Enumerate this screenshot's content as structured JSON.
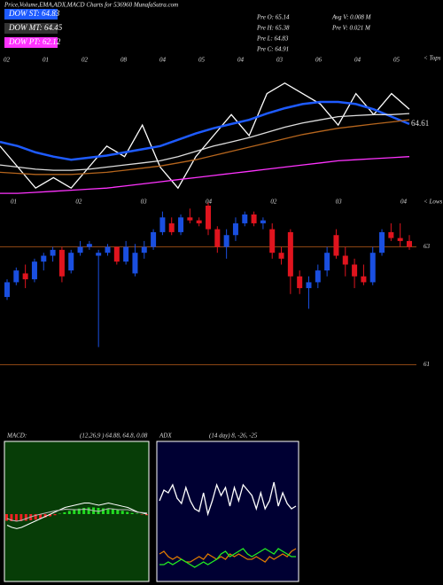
{
  "header": {
    "title": "Price,Volume,EMA,ADX,MACD Charts for 536960  MunafaSutra.com",
    "stats": [
      "Pre  O: 65.14",
      "Pre  H: 65.38",
      "Pre  L: 64.83",
      "Pre  C: 64.91",
      "Avg  V: 0.008 M",
      "Pre  V: 0.021 M"
    ]
  },
  "chart_data": [
    {
      "type": "line",
      "right_label": "< Tops",
      "date_labels": [
        "02",
        "01",
        "02",
        "08",
        "04",
        "05",
        "04",
        "03",
        "06",
        "04",
        "05"
      ],
      "ylim": [
        63.85,
        65.2
      ],
      "series": [
        {
          "color": "#ffffff",
          "values": [
            64.4,
            64.2,
            64.0,
            64.1,
            64.0,
            64.2,
            64.4,
            64.3,
            64.6,
            64.2,
            64.0,
            64.3,
            64.5,
            64.7,
            64.5,
            64.9,
            65.0,
            64.9,
            64.8,
            64.6,
            64.9,
            64.7,
            64.9,
            64.75
          ]
        },
        {
          "name": "DOW ST: 64.83",
          "color": "#1e5bff",
          "values": [
            64.44,
            64.4,
            64.34,
            64.3,
            64.27,
            64.29,
            64.31,
            64.34,
            64.37,
            64.4,
            64.46,
            64.52,
            64.57,
            64.61,
            64.65,
            64.71,
            64.76,
            64.8,
            64.82,
            64.82,
            64.8,
            64.75,
            64.68,
            64.61
          ]
        },
        {
          "name": "DOW MT: 64.45",
          "color": "#dddddd",
          "values": [
            64.22,
            64.2,
            64.18,
            64.17,
            64.17,
            64.18,
            64.2,
            64.22,
            64.24,
            64.26,
            64.3,
            64.35,
            64.4,
            64.44,
            64.48,
            64.53,
            64.58,
            64.62,
            64.65,
            64.68,
            64.69,
            64.7,
            64.7,
            64.71
          ]
        },
        {
          "color": "#b5651d",
          "values": [
            64.15,
            64.14,
            64.13,
            64.13,
            64.13,
            64.14,
            64.15,
            64.17,
            64.19,
            64.21,
            64.24,
            64.27,
            64.31,
            64.35,
            64.39,
            64.43,
            64.47,
            64.51,
            64.54,
            64.57,
            64.59,
            64.61,
            64.63,
            64.65
          ]
        },
        {
          "name": "DOW PT: 62.12",
          "color": "#ff33ff",
          "values": [
            63.95,
            63.95,
            63.96,
            63.97,
            63.98,
            63.99,
            64.0,
            64.02,
            64.04,
            64.06,
            64.08,
            64.1,
            64.12,
            64.14,
            64.16,
            64.18,
            64.2,
            64.22,
            64.24,
            64.26,
            64.27,
            64.28,
            64.29,
            64.3
          ]
        }
      ]
    },
    {
      "type": "candlestick",
      "right_label": "< Lows",
      "date_labels": [
        "01",
        "02",
        "03",
        "04",
        "02",
        "03",
        "04"
      ],
      "ylim": [
        60,
        63.7
      ],
      "yticks": [
        63,
        61
      ],
      "up_color": "#1a4fe0",
      "down_color": "#e0141e",
      "open": [
        62.15,
        62.4,
        62.55,
        62.45,
        62.75,
        62.85,
        62.95,
        62.6,
        62.9,
        63.0,
        62.85,
        62.9,
        63.0,
        62.75,
        62.55,
        62.9,
        63.0,
        63.25,
        63.4,
        63.25,
        63.5,
        63.45,
        63.7,
        63.3,
        63.0,
        63.2,
        63.4,
        63.55,
        63.4,
        63.3,
        62.9,
        63.25,
        62.5,
        62.3,
        62.4,
        62.6,
        63.2,
        62.85,
        62.7,
        62.5,
        62.4,
        62.9,
        63.25,
        63.15,
        63.1
      ],
      "high": [
        62.45,
        62.65,
        62.7,
        62.8,
        62.9,
        63.0,
        63.0,
        62.95,
        63.1,
        63.1,
        62.95,
        63.05,
        63.0,
        63.1,
        63.05,
        63.1,
        63.3,
        63.6,
        63.5,
        63.55,
        63.65,
        63.5,
        63.75,
        63.35,
        63.3,
        63.5,
        63.6,
        63.6,
        63.5,
        63.4,
        63.0,
        63.3,
        62.6,
        62.5,
        62.7,
        63.0,
        63.3,
        63.0,
        62.8,
        62.7,
        63.0,
        63.3,
        63.4,
        63.4,
        63.2
      ],
      "low": [
        62.1,
        62.35,
        62.3,
        62.4,
        62.6,
        62.75,
        62.4,
        62.55,
        62.85,
        62.95,
        61.3,
        62.85,
        62.7,
        62.7,
        62.5,
        62.8,
        62.95,
        63.2,
        63.2,
        63.2,
        63.4,
        63.35,
        63.2,
        62.9,
        62.8,
        63.1,
        63.35,
        63.35,
        63.3,
        62.8,
        62.7,
        62.2,
        62.2,
        61.95,
        62.3,
        62.5,
        62.8,
        62.5,
        62.3,
        62.35,
        62.35,
        62.85,
        63.1,
        63.0,
        62.95
      ],
      "close": [
        62.4,
        62.6,
        62.45,
        62.75,
        62.85,
        62.95,
        62.5,
        62.9,
        63.0,
        63.05,
        62.9,
        63.0,
        62.75,
        63.0,
        62.9,
        63.0,
        63.25,
        63.5,
        63.25,
        63.5,
        63.45,
        63.4,
        63.3,
        63.0,
        63.2,
        63.4,
        63.55,
        63.4,
        63.45,
        62.9,
        62.8,
        62.5,
        62.3,
        62.4,
        62.6,
        62.9,
        62.85,
        62.7,
        62.5,
        62.4,
        62.9,
        63.25,
        63.15,
        63.1,
        63.0
      ]
    },
    {
      "type": "macd",
      "title": "MACD:",
      "subtitle": "(12,26,9 ) 64.88, 64.8, 0.08",
      "ylim": [
        -3,
        3
      ],
      "pos_color": "#22dd22",
      "neg_color": "#ee2222",
      "histogram": [
        -0.3,
        -0.32,
        -0.33,
        -0.32,
        -0.3,
        -0.28,
        -0.25,
        -0.2,
        -0.15,
        -0.1,
        -0.05,
        0.02,
        0.08,
        0.14,
        0.2,
        0.25,
        0.28,
        0.3,
        0.3,
        0.28,
        0.26,
        0.25,
        0.22,
        0.2,
        0.15,
        0.1,
        0.05,
        0.02,
        -0.02,
        -0.05
      ],
      "series": [
        {
          "color": "#ffffff",
          "values": [
            -0.5,
            -0.6,
            -0.65,
            -0.6,
            -0.5,
            -0.4,
            -0.3,
            -0.2,
            -0.1,
            0,
            0.1,
            0.2,
            0.3,
            0.35,
            0.4,
            0.45,
            0.5,
            0.5,
            0.45,
            0.4,
            0.45,
            0.5,
            0.45,
            0.4,
            0.35,
            0.3,
            0.2,
            0.1,
            0.05,
            0
          ]
        },
        {
          "color": "#bbbbbb",
          "values": [
            -0.2,
            -0.28,
            -0.32,
            -0.28,
            -0.2,
            -0.12,
            -0.05,
            0,
            0.05,
            0.1,
            0.15,
            0.18,
            0.22,
            0.21,
            0.2,
            0.2,
            0.22,
            0.2,
            0.15,
            0.12,
            0.19,
            0.25,
            0.23,
            0.2,
            0.2,
            0.2,
            0.15,
            0.08,
            0.07,
            0.05
          ]
        }
      ]
    },
    {
      "type": "line",
      "title": "ADX",
      "subtitle": "(14 day) 8, -26, -25",
      "ylim": [
        0,
        50
      ],
      "series": [
        {
          "color": "#ffffff",
          "values": [
            30,
            34,
            33,
            36,
            31,
            29,
            35,
            30,
            27,
            26,
            33,
            25,
            30,
            36,
            32,
            35,
            28,
            35,
            30,
            36,
            34,
            32,
            27,
            33,
            27,
            30,
            37,
            28,
            33,
            29,
            27,
            28
          ]
        },
        {
          "color": "#e07b00",
          "values": [
            10,
            11,
            9,
            8,
            9,
            8,
            7,
            7,
            8,
            9,
            8,
            10,
            9,
            8,
            9,
            8,
            10,
            9,
            10,
            9,
            8,
            8,
            9,
            8,
            7,
            9,
            8,
            9,
            10,
            9,
            11,
            12
          ]
        },
        {
          "color": "#22ee22",
          "values": [
            6,
            6,
            7,
            6,
            7,
            8,
            7,
            6,
            5,
            6,
            7,
            6,
            7,
            8,
            10,
            11,
            9,
            10,
            11,
            12,
            10,
            9,
            10,
            11,
            12,
            11,
            10,
            12,
            11,
            10,
            9,
            9
          ]
        }
      ]
    }
  ]
}
